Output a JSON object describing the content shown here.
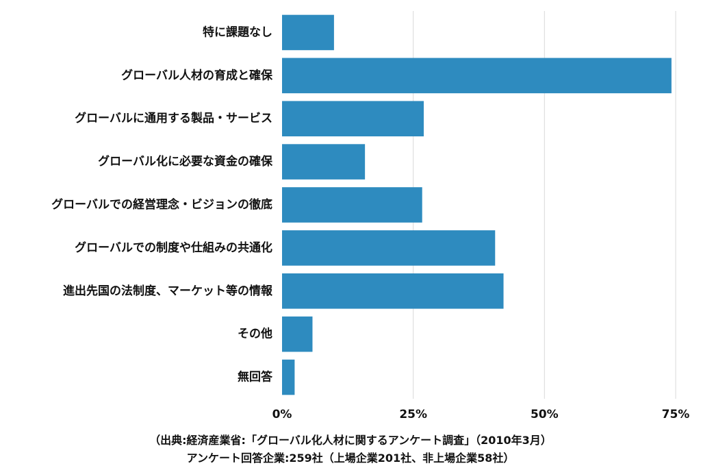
{
  "chart_data": {
    "type": "bar",
    "orientation": "horizontal",
    "categories": [
      "特に課題なし",
      "グローバル人材の育成と確保",
      "グローバルに通用する製品・サービス",
      "グローバル化に必要な資金の確保",
      "グローバルでの経営理念・ビジョンの徹底",
      "グローバルでの制度や仕組みの共通化",
      "進出先国の法制度、マーケット等の情報",
      "その他",
      "無回答"
    ],
    "values": [
      9.9,
      74.2,
      27.0,
      15.8,
      26.7,
      40.6,
      42.2,
      5.8,
      2.4
    ],
    "xlim": [
      0,
      75
    ],
    "xticks": [
      0,
      25,
      50,
      75
    ],
    "xtick_labels": [
      "0%",
      "25%",
      "50%",
      "75%"
    ],
    "grid": "vertical",
    "bar_color": "#2e8bbf",
    "grid_color": "#d9d9d9"
  },
  "source": {
    "line1": "（出典:経済産業省:「グローバル化人材に関するアンケート調査」（2010年3月）",
    "line2": "アンケート回答企業:259社（上場企業201社、非上場企業58社）"
  }
}
